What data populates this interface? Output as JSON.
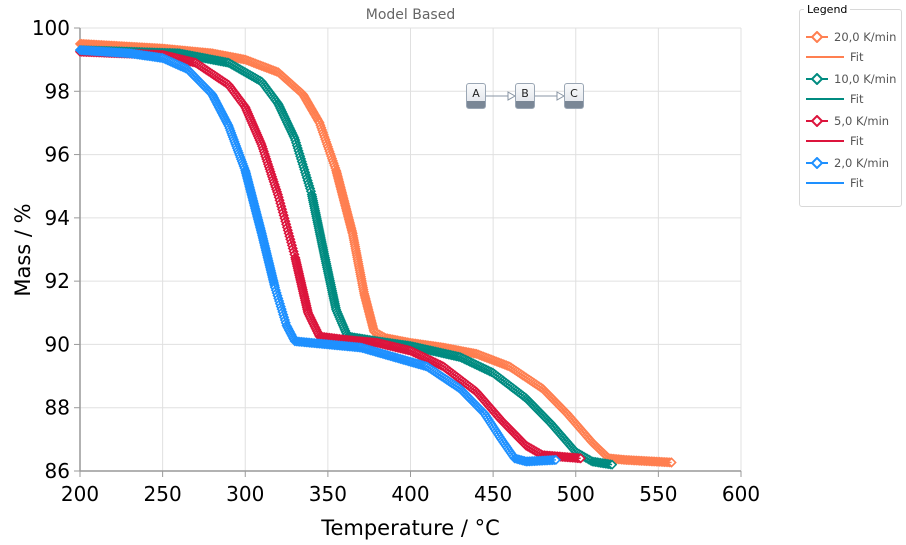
{
  "chart_data": {
    "type": "scatter",
    "title": "Model Based",
    "xlabel": "Temperature / °C",
    "ylabel": "Mass / %",
    "xlim": [
      200,
      600
    ],
    "ylim": [
      86,
      100
    ],
    "xticks": [
      200,
      250,
      300,
      350,
      400,
      450,
      500,
      550,
      600
    ],
    "yticks": [
      86,
      88,
      90,
      92,
      94,
      96,
      98,
      100
    ],
    "grid": true,
    "legend": {
      "title": "Legend",
      "placement": "right"
    },
    "series": [
      {
        "name": "20,0 K/min",
        "fit_name": "Fit",
        "color": "#ff7f50",
        "points": [
          [
            200,
            99.5
          ],
          [
            250,
            99.35
          ],
          [
            280,
            99.2
          ],
          [
            300,
            99.0
          ],
          [
            320,
            98.6
          ],
          [
            335,
            97.9
          ],
          [
            345,
            97.0
          ],
          [
            355,
            95.5
          ],
          [
            365,
            93.5
          ],
          [
            372,
            91.6
          ],
          [
            378,
            90.4
          ],
          [
            385,
            90.2
          ],
          [
            400,
            90.05
          ],
          [
            420,
            89.9
          ],
          [
            440,
            89.7
          ],
          [
            460,
            89.3
          ],
          [
            480,
            88.6
          ],
          [
            495,
            87.8
          ],
          [
            510,
            86.9
          ],
          [
            520,
            86.4
          ],
          [
            530,
            86.35
          ],
          [
            558,
            86.27
          ]
        ]
      },
      {
        "name": "10,0 K/min",
        "fit_name": "Fit",
        "color": "#008b80",
        "points": [
          [
            200,
            99.3
          ],
          [
            260,
            99.2
          ],
          [
            290,
            98.9
          ],
          [
            310,
            98.3
          ],
          [
            320,
            97.6
          ],
          [
            330,
            96.5
          ],
          [
            340,
            94.8
          ],
          [
            348,
            92.8
          ],
          [
            355,
            91.1
          ],
          [
            362,
            90.25
          ],
          [
            380,
            90.1
          ],
          [
            400,
            89.95
          ],
          [
            430,
            89.6
          ],
          [
            450,
            89.1
          ],
          [
            470,
            88.3
          ],
          [
            485,
            87.5
          ],
          [
            500,
            86.6
          ],
          [
            510,
            86.3
          ],
          [
            522,
            86.2
          ]
        ]
      },
      {
        "name": "5,0 K/min",
        "fit_name": "Fit",
        "color": "#dc143c",
        "points": [
          [
            200,
            99.25
          ],
          [
            250,
            99.15
          ],
          [
            270,
            98.9
          ],
          [
            290,
            98.2
          ],
          [
            300,
            97.5
          ],
          [
            310,
            96.3
          ],
          [
            320,
            94.7
          ],
          [
            330,
            92.8
          ],
          [
            338,
            91.0
          ],
          [
            345,
            90.25
          ],
          [
            360,
            90.15
          ],
          [
            380,
            90.05
          ],
          [
            400,
            89.8
          ],
          [
            420,
            89.3
          ],
          [
            440,
            88.5
          ],
          [
            455,
            87.6
          ],
          [
            470,
            86.8
          ],
          [
            480,
            86.5
          ],
          [
            503,
            86.4
          ]
        ]
      },
      {
        "name": "2,0 K/min",
        "fit_name": "Fit",
        "color": "#1e90ff",
        "points": [
          [
            200,
            99.3
          ],
          [
            230,
            99.2
          ],
          [
            250,
            99.05
          ],
          [
            265,
            98.7
          ],
          [
            280,
            97.9
          ],
          [
            290,
            96.9
          ],
          [
            300,
            95.5
          ],
          [
            310,
            93.5
          ],
          [
            318,
            91.8
          ],
          [
            325,
            90.6
          ],
          [
            330,
            90.1
          ],
          [
            350,
            90.0
          ],
          [
            370,
            89.9
          ],
          [
            390,
            89.6
          ],
          [
            410,
            89.3
          ],
          [
            430,
            88.6
          ],
          [
            445,
            87.8
          ],
          [
            455,
            87.0
          ],
          [
            463,
            86.4
          ],
          [
            470,
            86.3
          ],
          [
            488,
            86.35
          ]
        ]
      }
    ]
  },
  "diagram": {
    "nodes": [
      "A",
      "B",
      "C"
    ]
  }
}
